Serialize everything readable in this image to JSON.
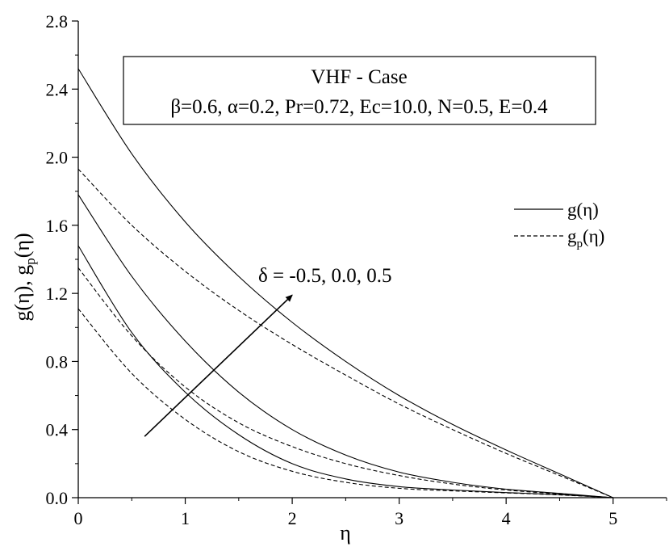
{
  "chart_data": {
    "type": "line",
    "title": "VHF - Case",
    "subtitle": "β=0.6, α=0.2, Pr=0.72, Ec=10.0, N=0.5, E=0.4",
    "xlabel": "η",
    "ylabel": "g(η), g_p(η)",
    "xlim": [
      0,
      5.5
    ],
    "ylim": [
      0,
      2.8
    ],
    "xticks": [
      0,
      1,
      2,
      3,
      4,
      5
    ],
    "yticks": [
      0.0,
      0.4,
      0.8,
      1.2,
      1.6,
      2.0,
      2.4,
      2.8
    ],
    "xtick_labels": [
      "0",
      "1",
      "2",
      "3",
      "4",
      "5"
    ],
    "ytick_labels": [
      "0.0",
      "0.4",
      "0.8",
      "1.2",
      "1.6",
      "2.0",
      "2.4",
      "2.8"
    ],
    "grid": false,
    "legend_position": "right",
    "legend": [
      {
        "base": "g(η)",
        "sub": "",
        "style": "solid"
      },
      {
        "base": "g",
        "sub": "p",
        "tail": "(η)",
        "style": "dashed"
      }
    ],
    "annotation": {
      "text": "δ = -0.5, 0.0, 0.5",
      "arrow_from": [
        0.62,
        0.36
      ],
      "arrow_to": [
        2.0,
        1.19
      ]
    },
    "x": [
      0,
      0.5,
      1.0,
      1.5,
      2.0,
      2.5,
      3.0,
      3.5,
      4.0,
      4.5,
      5.0
    ],
    "series": [
      {
        "delta": -0.5,
        "kind": "g",
        "style": "solid",
        "values": [
          1.48,
          0.97,
          0.62,
          0.37,
          0.2,
          0.11,
          0.065,
          0.045,
          0.03,
          0.018,
          0.0
        ]
      },
      {
        "delta": -0.5,
        "kind": "gp",
        "style": "dashed",
        "values": [
          1.11,
          0.73,
          0.46,
          0.27,
          0.155,
          0.09,
          0.055,
          0.04,
          0.028,
          0.016,
          0.0
        ]
      },
      {
        "delta": 0.0,
        "kind": "g",
        "style": "solid",
        "values": [
          1.78,
          1.3,
          0.92,
          0.62,
          0.4,
          0.25,
          0.15,
          0.09,
          0.05,
          0.025,
          0.0
        ]
      },
      {
        "delta": 0.0,
        "kind": "gp",
        "style": "dashed",
        "values": [
          1.35,
          0.95,
          0.65,
          0.44,
          0.3,
          0.2,
          0.13,
          0.08,
          0.045,
          0.022,
          0.0
        ]
      },
      {
        "delta": 0.5,
        "kind": "g",
        "style": "solid",
        "values": [
          2.52,
          2.02,
          1.62,
          1.3,
          1.03,
          0.8,
          0.6,
          0.43,
          0.28,
          0.14,
          0.0
        ]
      },
      {
        "delta": 0.5,
        "kind": "gp",
        "style": "dashed",
        "values": [
          1.93,
          1.6,
          1.33,
          1.1,
          0.9,
          0.72,
          0.55,
          0.4,
          0.26,
          0.13,
          0.0
        ]
      }
    ]
  }
}
